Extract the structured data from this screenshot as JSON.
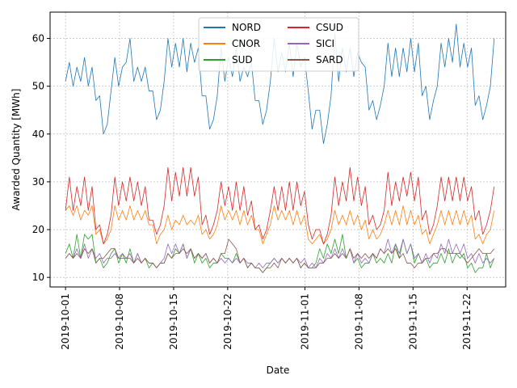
{
  "chart_data": {
    "type": "line",
    "title": "",
    "xlabel": "Date",
    "ylabel": "Awarded Quantity [MWh]",
    "x_start": "2019-10-01",
    "x_end": "2019-11-25",
    "xlim": [
      "2019-09-29",
      "2019-11-27"
    ],
    "ylim": [
      8,
      65.5
    ],
    "x_ticks": [
      "2019-10-01",
      "2019-10-08",
      "2019-10-15",
      "2019-10-22",
      "2019-11-01",
      "2019-11-08",
      "2019-11-15",
      "2019-11-22"
    ],
    "y_ticks": [
      10,
      20,
      30,
      40,
      50,
      60
    ],
    "grid": true,
    "legend": {
      "placement": "top-center",
      "columns": 2
    },
    "series": [
      {
        "name": "NORD",
        "color": "#1f77b4",
        "anchors": [
          51,
          55,
          50,
          54,
          51,
          56,
          50,
          54,
          47,
          48,
          40,
          42,
          49,
          56,
          50,
          54,
          55,
          60,
          51,
          54,
          51,
          54,
          49,
          49,
          43,
          45,
          51,
          60,
          54,
          59,
          54,
          60,
          53,
          59,
          55,
          58,
          48,
          48,
          41,
          43,
          48,
          58,
          51,
          56,
          52,
          58,
          51,
          54,
          52,
          55,
          47,
          47,
          42,
          45,
          51,
          60,
          53,
          57,
          53,
          59,
          52,
          59,
          54,
          56,
          49,
          41,
          45,
          45,
          38,
          42,
          48,
          61,
          51,
          58,
          53,
          58,
          52,
          57,
          55,
          54,
          45,
          47,
          43,
          46,
          50,
          59,
          52,
          58,
          52,
          58,
          53,
          60,
          53,
          59,
          48,
          50,
          43,
          47,
          50,
          59,
          54,
          60,
          55,
          63,
          54,
          59,
          54,
          58,
          46,
          48,
          43,
          46,
          50,
          60
        ]
      },
      {
        "name": "CNOR",
        "color": "#ff7f0e",
        "anchors": [
          24,
          25,
          23,
          25,
          22,
          24,
          23,
          25,
          19,
          20,
          17,
          18,
          20,
          25,
          22,
          24,
          22,
          25,
          22,
          24,
          22,
          24,
          21,
          21,
          17,
          19,
          20,
          23,
          20,
          22,
          21,
          23,
          21,
          22,
          21,
          23,
          19,
          20,
          18,
          19,
          21,
          25,
          22,
          24,
          22,
          24,
          21,
          24,
          21,
          23,
          20,
          20,
          17,
          19,
          21,
          25,
          22,
          24,
          22,
          24,
          21,
          24,
          21,
          23,
          18,
          17,
          18,
          19,
          17,
          18,
          20,
          24,
          21,
          23,
          21,
          24,
          21,
          23,
          20,
          22,
          18,
          20,
          18,
          19,
          21,
          24,
          21,
          24,
          21,
          25,
          21,
          24,
          21,
          23,
          19,
          20,
          17,
          19,
          21,
          24,
          21,
          24,
          21,
          24,
          21,
          24,
          21,
          23,
          18,
          19,
          17,
          19,
          20,
          24
        ]
      },
      {
        "name": "SUD",
        "color": "#2ca02c",
        "anchors": [
          15,
          17,
          14,
          19,
          14,
          19,
          18,
          19,
          13,
          14,
          12,
          13,
          15,
          16,
          13,
          15,
          13,
          16,
          13,
          15,
          13,
          14,
          12,
          13,
          12,
          13,
          13,
          15,
          14,
          16,
          15,
          17,
          14,
          16,
          13,
          15,
          13,
          14,
          12,
          13,
          13,
          15,
          14,
          14,
          13,
          15,
          13,
          14,
          12,
          13,
          12,
          12,
          11,
          12,
          13,
          14,
          13,
          14,
          13,
          14,
          13,
          14,
          12,
          13,
          12,
          12,
          13,
          16,
          14,
          17,
          15,
          18,
          15,
          19,
          14,
          16,
          13,
          14,
          12,
          13,
          13,
          15,
          13,
          14,
          13,
          15,
          13,
          17,
          14,
          18,
          15,
          17,
          13,
          15,
          13,
          14,
          12,
          13,
          13,
          15,
          13,
          16,
          13,
          15,
          14,
          15,
          12,
          13,
          11,
          12,
          12,
          15,
          12,
          14
        ]
      },
      {
        "name": "CSUD",
        "color": "#d62728",
        "anchors": [
          24,
          31,
          24,
          29,
          25,
          31,
          24,
          29,
          20,
          21,
          17,
          19,
          23,
          31,
          25,
          30,
          26,
          31,
          26,
          30,
          25,
          29,
          22,
          22,
          19,
          21,
          25,
          33,
          26,
          32,
          27,
          33,
          27,
          33,
          27,
          31,
          21,
          23,
          19,
          21,
          24,
          30,
          25,
          29,
          24,
          30,
          24,
          29,
          23,
          26,
          20,
          21,
          18,
          20,
          24,
          29,
          24,
          29,
          24,
          30,
          24,
          30,
          25,
          28,
          21,
          18,
          20,
          20,
          17,
          19,
          23,
          31,
          25,
          30,
          26,
          33,
          26,
          31,
          25,
          29,
          21,
          23,
          20,
          21,
          24,
          32,
          25,
          30,
          26,
          31,
          27,
          32,
          26,
          31,
          22,
          24,
          19,
          21,
          25,
          31,
          26,
          31,
          26,
          31,
          26,
          31,
          26,
          29,
          22,
          24,
          19,
          21,
          24,
          29
        ]
      },
      {
        "name": "SICI",
        "color": "#9467bd",
        "anchors": [
          14,
          15,
          14,
          16,
          14,
          17,
          14,
          16,
          14,
          15,
          13,
          14,
          14,
          15,
          14,
          15,
          14,
          15,
          13,
          15,
          13,
          14,
          13,
          13,
          12,
          13,
          14,
          17,
          15,
          17,
          15,
          17,
          14,
          16,
          14,
          15,
          14,
          15,
          13,
          14,
          13,
          14,
          13,
          14,
          13,
          14,
          13,
          14,
          13,
          13,
          12,
          13,
          12,
          13,
          13,
          14,
          13,
          14,
          13,
          14,
          13,
          14,
          13,
          14,
          12,
          13,
          12,
          14,
          13,
          15,
          14,
          16,
          14,
          16,
          14,
          16,
          13,
          15,
          13,
          14,
          13,
          15,
          14,
          16,
          15,
          18,
          15,
          17,
          15,
          18,
          15,
          17,
          14,
          15,
          13,
          15,
          13,
          15,
          14,
          17,
          15,
          18,
          15,
          17,
          15,
          17,
          14,
          15,
          13,
          15,
          13,
          14,
          13,
          14
        ]
      },
      {
        "name": "SARD",
        "color": "#8c564b",
        "anchors": [
          14,
          15,
          14,
          15,
          14,
          16,
          15,
          16,
          13,
          14,
          14,
          15,
          16,
          16,
          14,
          14,
          14,
          14,
          13,
          14,
          13,
          14,
          13,
          13,
          12,
          13,
          13,
          15,
          14,
          15,
          15,
          16,
          15,
          16,
          14,
          15,
          14,
          15,
          13,
          14,
          13,
          15,
          15,
          18,
          17,
          16,
          13,
          14,
          12,
          13,
          12,
          12,
          11,
          12,
          12,
          13,
          12,
          14,
          13,
          14,
          13,
          14,
          12,
          13,
          12,
          12,
          12,
          13,
          13,
          14,
          14,
          15,
          14,
          15,
          14,
          16,
          14,
          15,
          14,
          15,
          14,
          15,
          14,
          16,
          15,
          16,
          15,
          16,
          14,
          15,
          13,
          13,
          12,
          13,
          13,
          14,
          14,
          15,
          15,
          16,
          16,
          15,
          15,
          15,
          15,
          14,
          13,
          14,
          15,
          16,
          15,
          15,
          15,
          16
        ]
      }
    ]
  }
}
